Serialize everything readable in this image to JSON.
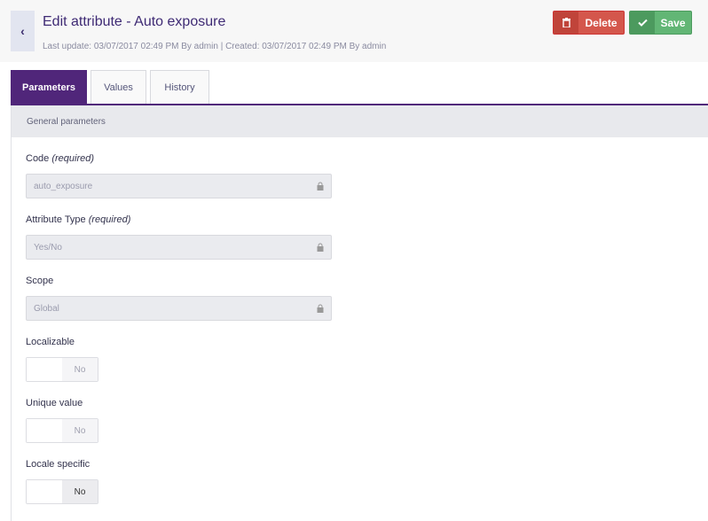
{
  "header": {
    "title": "Edit attribute - Auto exposure",
    "meta": "Last update: 03/07/2017 02:49 PM By admin | Created: 03/07/2017 02:49 PM By admin",
    "back_icon": "‹",
    "delete_label": "Delete",
    "save_label": "Save"
  },
  "tabs": [
    {
      "label": "Parameters",
      "active": true
    },
    {
      "label": "Values"
    },
    {
      "label": "History"
    }
  ],
  "section": {
    "title": "General parameters"
  },
  "fields": {
    "code": {
      "label": "Code",
      "req": "(required)",
      "value": "auto_exposure"
    },
    "type": {
      "label": "Attribute Type",
      "req": "(required)",
      "value": "Yes/No"
    },
    "scope": {
      "label": "Scope",
      "value": "Global"
    },
    "localizable": {
      "label": "Localizable",
      "value": "No"
    },
    "unique": {
      "label": "Unique value",
      "value": "No"
    },
    "locale_specific": {
      "label": "Locale specific",
      "value": "No"
    }
  },
  "colors": {
    "brand": "#50267a",
    "delete": "#d4574c",
    "save": "#62b675"
  }
}
